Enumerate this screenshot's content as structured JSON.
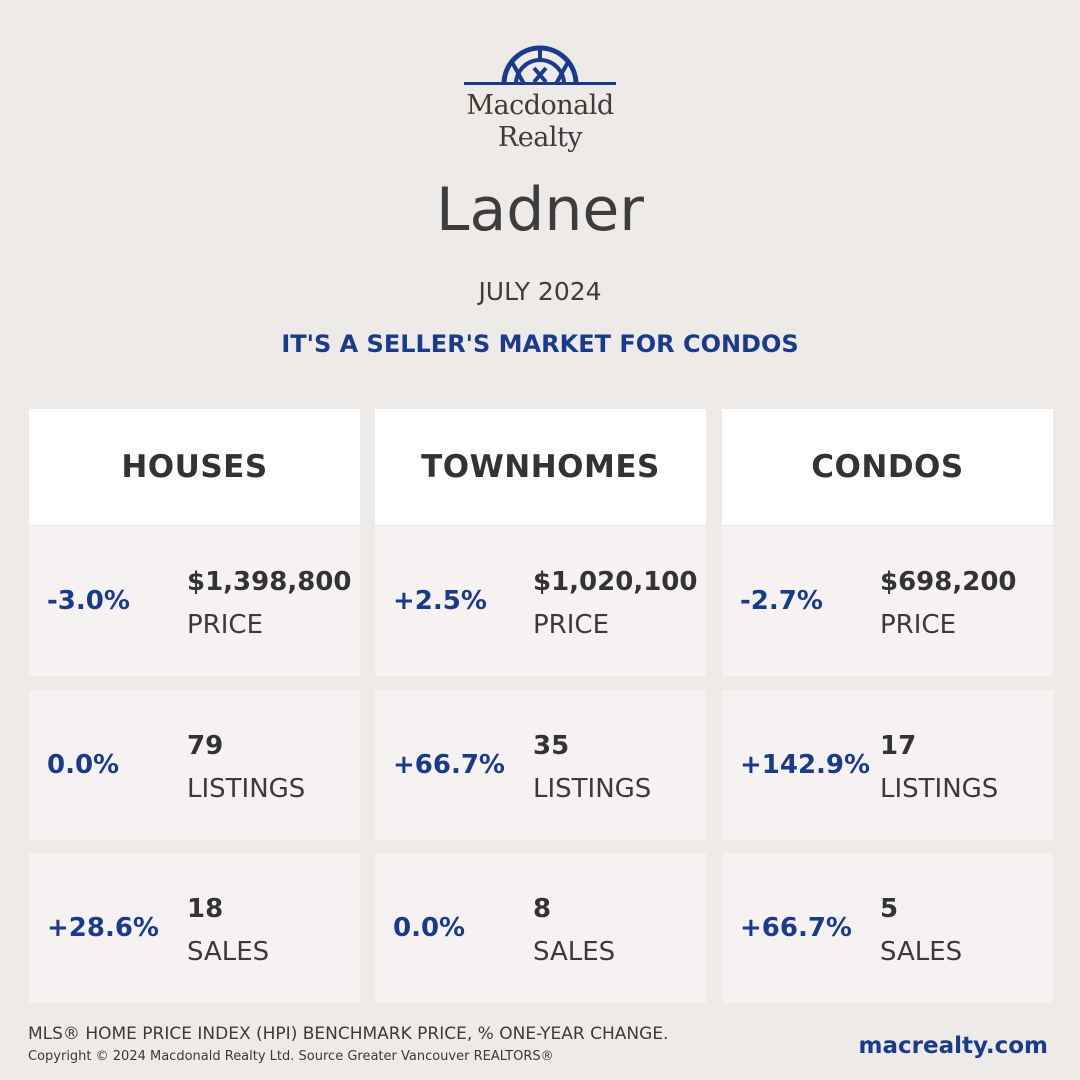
{
  "brand": {
    "line1": "Macdonald",
    "line2": "Realty",
    "color": "#1a3a8c"
  },
  "city": "Ladner",
  "date": "JULY 2024",
  "headline": "IT'S A SELLER'S MARKET FOR CONDOS",
  "columns": [
    {
      "title": "HOUSES",
      "price": {
        "change": "-3.0%",
        "value": "$1,398,800",
        "label": "PRICE"
      },
      "listings": {
        "change": "0.0%",
        "value": "79",
        "label": "LISTINGS"
      },
      "sales": {
        "change": "+28.6%",
        "value": "18",
        "label": "SALES"
      }
    },
    {
      "title": "TOWNHOMES",
      "price": {
        "change": "+2.5%",
        "value": "$1,020,100",
        "label": "PRICE"
      },
      "listings": {
        "change": "+66.7%",
        "value": "35",
        "label": "LISTINGS"
      },
      "sales": {
        "change": "0.0%",
        "value": "8",
        "label": "SALES"
      }
    },
    {
      "title": "CONDOS",
      "price": {
        "change": "-2.7%",
        "value": "$698,200",
        "label": "PRICE"
      },
      "listings": {
        "change": "+142.9%",
        "value": "17",
        "label": "LISTINGS"
      },
      "sales": {
        "change": "+66.7%",
        "value": "5",
        "label": "SALES"
      }
    }
  ],
  "footnote": "MLS® HOME PRICE INDEX (HPI) BENCHMARK PRICE, % ONE-YEAR CHANGE.",
  "copyright": "Copyright © 2024 Macdonald Realty Ltd. Source Greater Vancouver REALTORS®",
  "website": "macrealty.com"
}
